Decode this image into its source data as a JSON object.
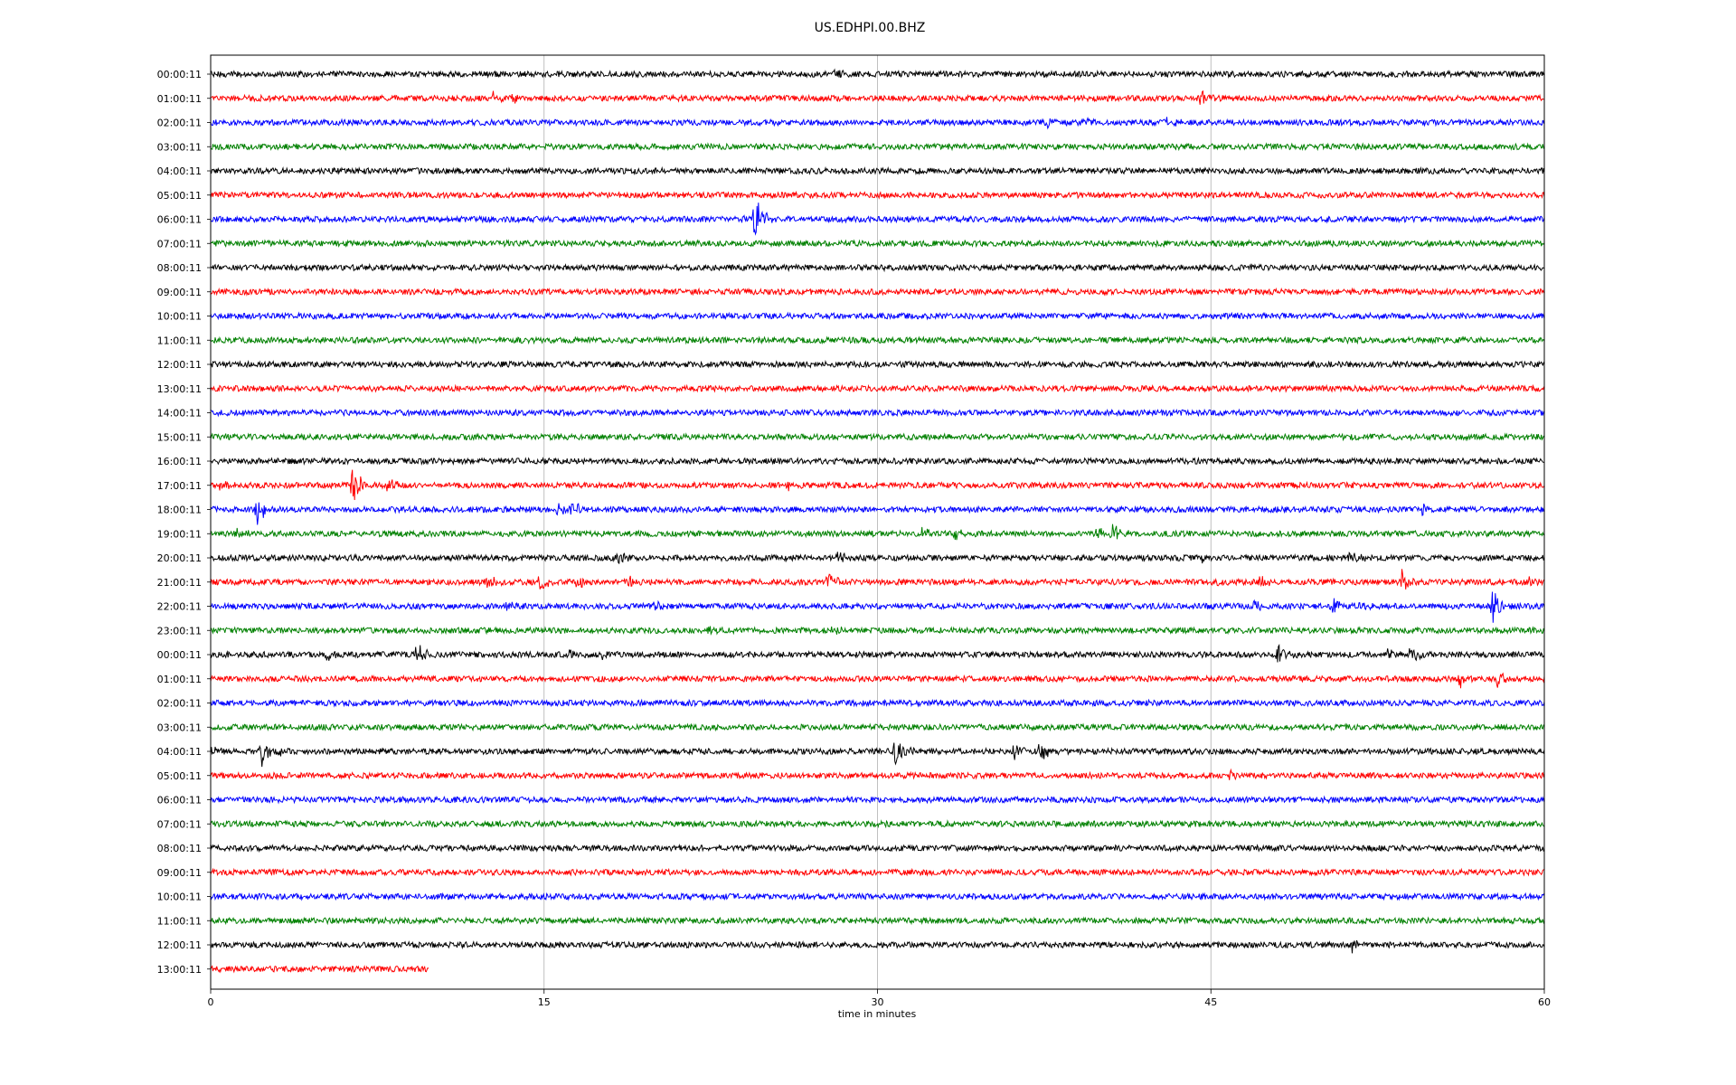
{
  "chart_data": {
    "type": "line",
    "title": "US.EDHPI.00.BHZ",
    "xlabel": "time in minutes",
    "ylabel": "",
    "xlim": [
      0,
      60
    ],
    "x_ticks": [
      "0",
      "15",
      "30",
      "45",
      "60"
    ],
    "x_tick_values": [
      0,
      15,
      30,
      45,
      60
    ],
    "grid": "vertical lines at 15, 30, 45",
    "color_cycle": [
      "#000000",
      "#ff0000",
      "#0000ff",
      "#008000"
    ],
    "trace_length_minutes": 60,
    "last_trace_length_minutes": 9.8,
    "rows": [
      {
        "label": "00:00:11",
        "color": "#000000",
        "events": [
          {
            "t": 28.1,
            "a": 0.3
          }
        ]
      },
      {
        "label": "01:00:11",
        "color": "#ff0000",
        "events": [
          {
            "t": 1.4,
            "a": 0.3
          },
          {
            "t": 12.7,
            "a": 0.5
          },
          {
            "t": 13.6,
            "a": 0.6
          },
          {
            "t": 44.5,
            "a": 0.8
          }
        ]
      },
      {
        "label": "02:00:11",
        "color": "#0000ff",
        "events": [
          {
            "t": 37.5,
            "a": 0.4
          },
          {
            "t": 39.3,
            "a": 0.5
          },
          {
            "t": 43.0,
            "a": 0.5
          }
        ]
      },
      {
        "label": "03:00:11",
        "color": "#008000",
        "events": []
      },
      {
        "label": "04:00:11",
        "color": "#000000",
        "events": []
      },
      {
        "label": "05:00:11",
        "color": "#ff0000",
        "events": []
      },
      {
        "label": "06:00:11",
        "color": "#0000ff",
        "events": [
          {
            "t": 23.9,
            "a": 0.4
          },
          {
            "t": 24.5,
            "a": 2.2
          }
        ]
      },
      {
        "label": "07:00:11",
        "color": "#008000",
        "events": []
      },
      {
        "label": "08:00:11",
        "color": "#000000",
        "events": []
      },
      {
        "label": "09:00:11",
        "color": "#ff0000",
        "events": []
      },
      {
        "label": "10:00:11",
        "color": "#0000ff",
        "events": []
      },
      {
        "label": "11:00:11",
        "color": "#008000",
        "events": []
      },
      {
        "label": "12:00:11",
        "color": "#000000",
        "events": []
      },
      {
        "label": "13:00:11",
        "color": "#ff0000",
        "events": []
      },
      {
        "label": "14:00:11",
        "color": "#0000ff",
        "events": []
      },
      {
        "label": "15:00:11",
        "color": "#008000",
        "events": []
      },
      {
        "label": "16:00:11",
        "color": "#000000",
        "events": []
      },
      {
        "label": "17:00:11",
        "color": "#ff0000",
        "events": [
          {
            "t": 0.4,
            "a": 0.4
          },
          {
            "t": 6.4,
            "a": 2.0
          },
          {
            "t": 8.0,
            "a": 0.6
          },
          {
            "t": 26.0,
            "a": 0.5
          }
        ]
      },
      {
        "label": "18:00:11",
        "color": "#0000ff",
        "events": [
          {
            "t": 2.1,
            "a": 1.4
          },
          {
            "t": 15.6,
            "a": 0.6
          },
          {
            "t": 16.3,
            "a": 0.8
          },
          {
            "t": 54.5,
            "a": 0.5
          },
          {
            "t": 58.0,
            "a": 0.4
          }
        ]
      },
      {
        "label": "19:00:11",
        "color": "#008000",
        "events": [
          {
            "t": 1.2,
            "a": 0.6
          },
          {
            "t": 32.0,
            "a": 0.6
          },
          {
            "t": 33.5,
            "a": 0.5
          },
          {
            "t": 39.8,
            "a": 0.7
          },
          {
            "t": 40.6,
            "a": 0.8
          }
        ]
      },
      {
        "label": "20:00:11",
        "color": "#000000",
        "events": [
          {
            "t": 18.4,
            "a": 0.6
          },
          {
            "t": 28.2,
            "a": 0.6
          },
          {
            "t": 44.6,
            "a": 0.5
          },
          {
            "t": 51.3,
            "a": 0.6
          }
        ]
      },
      {
        "label": "21:00:11",
        "color": "#ff0000",
        "events": [
          {
            "t": 12.5,
            "a": 0.5
          },
          {
            "t": 14.8,
            "a": 0.6
          },
          {
            "t": 16.5,
            "a": 0.5
          },
          {
            "t": 18.8,
            "a": 0.5
          },
          {
            "t": 27.8,
            "a": 0.7
          },
          {
            "t": 45.3,
            "a": 0.6
          },
          {
            "t": 47.2,
            "a": 0.6
          },
          {
            "t": 53.6,
            "a": 1.0
          },
          {
            "t": 59.2,
            "a": 0.4
          }
        ]
      },
      {
        "label": "22:00:11",
        "color": "#0000ff",
        "events": [
          {
            "t": 13.3,
            "a": 0.4
          },
          {
            "t": 20.0,
            "a": 0.4
          },
          {
            "t": 27.5,
            "a": 0.4
          },
          {
            "t": 47.0,
            "a": 0.5
          },
          {
            "t": 50.5,
            "a": 0.6
          },
          {
            "t": 51.5,
            "a": 0.5
          },
          {
            "t": 57.7,
            "a": 1.6
          }
        ]
      },
      {
        "label": "23:00:11",
        "color": "#008000",
        "events": [
          {
            "t": 22.4,
            "a": 0.4
          },
          {
            "t": 28.0,
            "a": 0.3
          }
        ]
      },
      {
        "label": "00:00:11",
        "color": "#000000",
        "events": [
          {
            "t": 5.2,
            "a": 0.6
          },
          {
            "t": 9.3,
            "a": 1.3
          },
          {
            "t": 16.2,
            "a": 0.5
          },
          {
            "t": 17.5,
            "a": 0.5
          },
          {
            "t": 48.0,
            "a": 0.9
          },
          {
            "t": 53.0,
            "a": 0.6
          },
          {
            "t": 54.0,
            "a": 0.7
          }
        ]
      },
      {
        "label": "01:00:11",
        "color": "#ff0000",
        "events": [
          {
            "t": 56.2,
            "a": 0.9
          },
          {
            "t": 57.9,
            "a": 0.8
          }
        ]
      },
      {
        "label": "02:00:11",
        "color": "#0000ff",
        "events": []
      },
      {
        "label": "03:00:11",
        "color": "#008000",
        "events": []
      },
      {
        "label": "04:00:11",
        "color": "#000000",
        "events": [
          {
            "t": 0.1,
            "a": 0.5
          },
          {
            "t": 2.3,
            "a": 1.4
          },
          {
            "t": 3.0,
            "a": 0.4
          },
          {
            "t": 30.8,
            "a": 1.6
          },
          {
            "t": 36.2,
            "a": 0.8
          },
          {
            "t": 37.3,
            "a": 1.0
          }
        ]
      },
      {
        "label": "05:00:11",
        "color": "#ff0000",
        "events": [
          {
            "t": 45.9,
            "a": 0.4
          }
        ]
      },
      {
        "label": "06:00:11",
        "color": "#0000ff",
        "events": []
      },
      {
        "label": "07:00:11",
        "color": "#008000",
        "events": []
      },
      {
        "label": "08:00:11",
        "color": "#000000",
        "events": []
      },
      {
        "label": "09:00:11",
        "color": "#ff0000",
        "events": []
      },
      {
        "label": "10:00:11",
        "color": "#0000ff",
        "events": []
      },
      {
        "label": "11:00:11",
        "color": "#008000",
        "events": []
      },
      {
        "label": "12:00:11",
        "color": "#000000",
        "events": [
          {
            "t": 51.3,
            "a": 0.8
          }
        ]
      },
      {
        "label": "13:00:11",
        "color": "#ff0000",
        "events": []
      }
    ]
  }
}
